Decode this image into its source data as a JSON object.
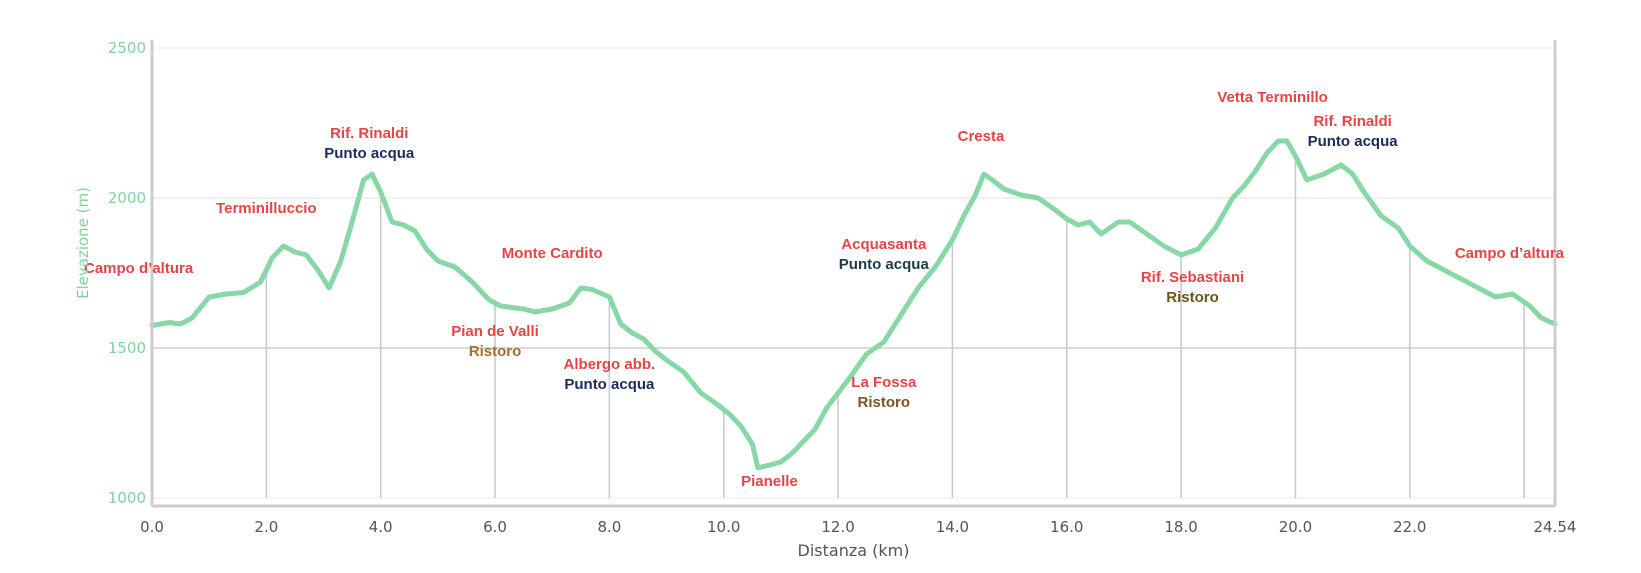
{
  "chart_data": {
    "type": "line",
    "title": "",
    "xlabel": "Distanza (km)",
    "ylabel": "Elevazione (m)",
    "xlim": [
      0,
      24.54
    ],
    "ylim": [
      1000,
      2500
    ],
    "x_ticks": [
      "0.0",
      "2.0",
      "4.0",
      "6.0",
      "8.0",
      "10.0",
      "12.0",
      "14.0",
      "16.0",
      "18.0",
      "20.0",
      "22.0",
      "24.54"
    ],
    "x_tick_values": [
      0,
      2,
      4,
      6,
      8,
      10,
      12,
      14,
      16,
      18,
      20,
      22,
      24.54
    ],
    "y_ticks": [
      "1000",
      "1500",
      "2000",
      "2500"
    ],
    "y_tick_values": [
      1000,
      1500,
      2000,
      2500
    ],
    "grid": true,
    "series": [
      {
        "color": "#88d8a6",
        "x": [
          0,
          0.3,
          0.5,
          0.7,
          1.0,
          1.3,
          1.6,
          1.9,
          2.1,
          2.3,
          2.5,
          2.7,
          2.9,
          3.1,
          3.3,
          3.5,
          3.7,
          3.85,
          4.0,
          4.2,
          4.4,
          4.6,
          4.8,
          5.0,
          5.3,
          5.6,
          5.9,
          6.1,
          6.3,
          6.5,
          6.7,
          7.0,
          7.3,
          7.5,
          7.7,
          8.0,
          8.2,
          8.4,
          8.6,
          8.8,
          9.0,
          9.3,
          9.6,
          9.9,
          10.1,
          10.3,
          10.5,
          10.6,
          10.8,
          11.0,
          11.2,
          11.4,
          11.6,
          11.8,
          12.0,
          12.2,
          12.5,
          12.8,
          13.1,
          13.4,
          13.7,
          14.0,
          14.2,
          14.4,
          14.55,
          14.7,
          14.9,
          15.2,
          15.5,
          15.8,
          16.0,
          16.2,
          16.4,
          16.6,
          16.9,
          17.1,
          17.4,
          17.7,
          18.0,
          18.3,
          18.6,
          18.9,
          19.1,
          19.3,
          19.5,
          19.7,
          19.85,
          20.0,
          20.2,
          20.5,
          20.8,
          21.0,
          21.2,
          21.5,
          21.8,
          22.0,
          22.3,
          22.6,
          22.9,
          23.2,
          23.5,
          23.8,
          24.1,
          24.3,
          24.54
        ],
        "y": [
          1575,
          1585,
          1580,
          1600,
          1670,
          1680,
          1685,
          1720,
          1800,
          1840,
          1820,
          1810,
          1760,
          1700,
          1790,
          1920,
          2060,
          2080,
          2020,
          1920,
          1910,
          1890,
          1830,
          1790,
          1770,
          1720,
          1660,
          1640,
          1635,
          1630,
          1620,
          1630,
          1650,
          1700,
          1695,
          1670,
          1580,
          1550,
          1530,
          1490,
          1460,
          1420,
          1350,
          1310,
          1280,
          1240,
          1180,
          1100,
          1110,
          1120,
          1150,
          1190,
          1230,
          1300,
          1350,
          1400,
          1480,
          1520,
          1610,
          1700,
          1770,
          1860,
          1940,
          2010,
          2080,
          2060,
          2030,
          2010,
          2000,
          1960,
          1930,
          1910,
          1920,
          1880,
          1920,
          1920,
          1880,
          1840,
          1810,
          1830,
          1900,
          2000,
          2040,
          2090,
          2150,
          2190,
          2190,
          2140,
          2060,
          2080,
          2110,
          2080,
          2020,
          1940,
          1900,
          1840,
          1790,
          1760,
          1730,
          1700,
          1670,
          1680,
          1640,
          1600,
          1580
        ]
      }
    ],
    "annotations": [
      {
        "text": "Campo d’altura",
        "x": 0.0,
        "y": 1750,
        "color": "#e64545",
        "size": 17,
        "sub": ""
      },
      {
        "text": "Terminilluccio",
        "x": 2.0,
        "y": 1950,
        "color": "#e64545",
        "size": 15,
        "sub": ""
      },
      {
        "text": "Rif. Rinaldi",
        "x": 3.8,
        "y": 2200,
        "color": "#e64545",
        "size": 15,
        "sub": "Punto acqua",
        "sub_color": "#1c2a5e"
      },
      {
        "text": "Pian de Valli",
        "x": 6.0,
        "y": 1540,
        "color": "#e64545",
        "size": 15,
        "sub": "Ristoro",
        "sub_color": "#a3702b"
      },
      {
        "text": "Monte Cardito",
        "x": 7.0,
        "y": 1800,
        "color": "#e64545",
        "size": 15,
        "sub": ""
      },
      {
        "text": "Albergo abb.",
        "x": 8.0,
        "y": 1430,
        "color": "#e64545",
        "size": 15,
        "sub": "Punto acqua",
        "sub_color": "#1c2a5e"
      },
      {
        "text": "Pianelle",
        "x": 10.8,
        "y": 1040,
        "color": "#e64545",
        "size": 15,
        "sub": ""
      },
      {
        "text": "La Fossa",
        "x": 12.8,
        "y": 1370,
        "color": "#e64545",
        "size": 15,
        "sub": "Ristoro",
        "sub_color": "#7a5521"
      },
      {
        "text": "Acquasanta",
        "x": 12.8,
        "y": 1830,
        "color": "#e64545",
        "size": 15,
        "sub": "Punto acqua",
        "sub_color": "#1c3a4a"
      },
      {
        "text": "Cresta",
        "x": 14.5,
        "y": 2190,
        "color": "#e64545",
        "size": 15,
        "sub": ""
      },
      {
        "text": "Rif. Sebastiani",
        "x": 18.2,
        "y": 1720,
        "color": "#e64545",
        "size": 15,
        "sub": "Ristoro",
        "sub_color": "#6b5417"
      },
      {
        "text": "Vetta Terminillo",
        "x": 19.6,
        "y": 2320,
        "color": "#e64545",
        "size": 15,
        "sub": ""
      },
      {
        "text": "Rif. Rinaldi",
        "x": 21.0,
        "y": 2240,
        "color": "#e64545",
        "size": 15,
        "sub": "Punto acqua",
        "sub_color": "#1c2a5e"
      },
      {
        "text": "Campo d’altura",
        "x": 24.54,
        "y": 1800,
        "color": "#e64545",
        "size": 15,
        "sub": ""
      }
    ],
    "markers_x": [
      2.0,
      4.0,
      6.0,
      8.0,
      10.0,
      12.0,
      14.0,
      16.0,
      18.0,
      20.0,
      22.0,
      24.0
    ]
  }
}
